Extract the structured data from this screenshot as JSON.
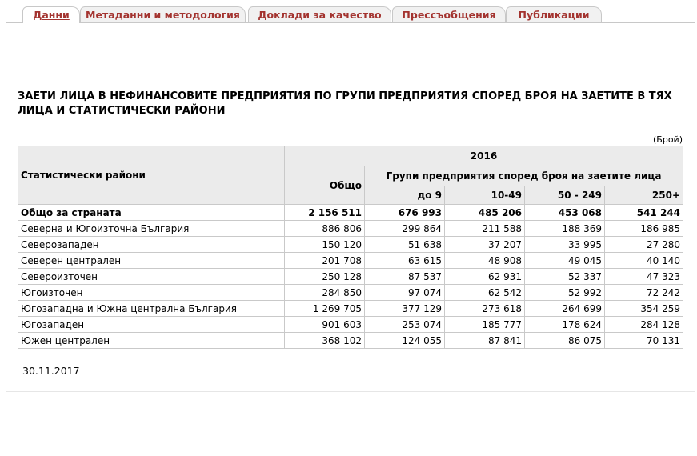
{
  "tabs": [
    "Данни",
    "Метаданни и методология",
    "Доклади за качество",
    "Прессъобщения",
    "Публикации"
  ],
  "title": "ЗАЕТИ ЛИЦА В НЕФИНАНСОВИТЕ ПРЕДПРИЯТИЯ ПО ГРУПИ ПРЕДПРИЯТИЯ СПОРЕД БРОЯ НА ЗАЕТИТЕ В ТЯХ ЛИЦА И СТАТИСТИЧЕСКИ РАЙОНИ",
  "unit": "(Брой)",
  "table": {
    "header": {
      "row_label": "Статистически райони",
      "year": "2016",
      "total": "Общо",
      "group": "Групи предприятия според броя на заетите лица",
      "groups": [
        "до 9",
        "10-49",
        "50 - 249",
        "250+"
      ]
    },
    "rows": [
      [
        "Общо за страната",
        "2 156 511",
        "676 993",
        "485 206",
        "453 068",
        "541 244"
      ],
      [
        "Северна и Югоизточна България",
        "886 806",
        "299 864",
        "211 588",
        "188 369",
        "186 985"
      ],
      [
        "Северозападен",
        "150 120",
        "51 638",
        "37 207",
        "33 995",
        "27 280"
      ],
      [
        "Северен централен",
        "201 708",
        "63 615",
        "48 908",
        "49 045",
        "40 140"
      ],
      [
        "Североизточен",
        "250 128",
        "87 537",
        "62 931",
        "52 337",
        "47 323"
      ],
      [
        "Югоизточен",
        "284 850",
        "97 074",
        "62 542",
        "52 992",
        "72 242"
      ],
      [
        "Югозападна и Южна централна България",
        "1 269 705",
        "377 129",
        "273 618",
        "264 699",
        "354 259"
      ],
      [
        "Югозападен",
        "901 603",
        "253 074",
        "185 777",
        "178 624",
        "284 128"
      ],
      [
        "Южен централен",
        "368 102",
        "124 055",
        "87 841",
        "86 075",
        "70 131"
      ]
    ]
  },
  "date": "30.11.2017"
}
